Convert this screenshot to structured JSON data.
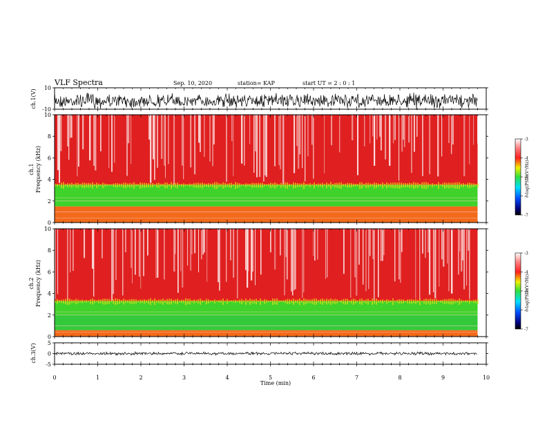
{
  "header": {
    "title": "VLF Spectra",
    "date": "Sep. 10, 2020",
    "station": "station= KAP",
    "start": "start  UT =   2 : 0  : 1"
  },
  "panels": {
    "ch1_wave_label": "ch.1(V)",
    "ch1_spec_label_a": "ch.1",
    "ch1_spec_label_b": "Frequency  (kHz)",
    "ch2_spec_label_a": "ch.2",
    "ch2_spec_label_b": "Frequency  (kHz)",
    "ch3_wave_label": "ch.3(V)",
    "time_label": "Time  (min)",
    "colorbar_label": "log(PSD)(V²/Hz)"
  },
  "colors": {
    "spec_red": "#e02020",
    "spec_green": "#3fd22a",
    "trace": "#000000"
  },
  "chart_data": [
    {
      "type": "line",
      "name": "ch1-waveform",
      "ylabel": "ch.1(V)",
      "ylim": [
        -10,
        10
      ],
      "yticks": [
        -10,
        10
      ],
      "xlim": [
        0,
        10
      ],
      "x_data_end": 9.8,
      "description_values": {
        "mean": -2,
        "range": [
          -9,
          9
        ]
      }
    },
    {
      "type": "heatmap",
      "name": "ch1-spectrogram",
      "xlabel": "",
      "ylabel": "Frequency  (kHz)",
      "ylim": [
        0,
        10
      ],
      "yticks": [
        0,
        2,
        4,
        6,
        8,
        10
      ],
      "xlim": [
        0,
        10
      ],
      "x_data_end": 9.8,
      "bands": [
        {
          "from": 0,
          "to": 0.8,
          "level": -4
        },
        {
          "from": 0.8,
          "to": 1.5,
          "level": -4.2
        },
        {
          "from": 1.5,
          "to": 3.5,
          "level": -4.6
        },
        {
          "from": 3.5,
          "to": 10,
          "level": -3.6
        }
      ],
      "colorbar": {
        "ticks": [
          -3,
          -4,
          -5,
          -6,
          -7
        ],
        "range": [
          -7,
          -3
        ],
        "label": "log(PSD)(V²/Hz)"
      }
    },
    {
      "type": "heatmap",
      "name": "ch2-spectrogram",
      "xlabel": "",
      "ylabel": "Frequency  (kHz)",
      "ylim": [
        0,
        10
      ],
      "yticks": [
        0,
        2,
        4,
        6,
        8,
        10
      ],
      "xlim": [
        0,
        10
      ],
      "x_data_end": 9.8,
      "bands": [
        {
          "from": 0,
          "to": 0.6,
          "level": -4
        },
        {
          "from": 0.6,
          "to": 2.0,
          "level": -5.0
        },
        {
          "from": 2.0,
          "to": 3.3,
          "level": -4.6
        },
        {
          "from": 3.3,
          "to": 10,
          "level": -3.7
        }
      ],
      "colorbar": {
        "ticks": [
          -3,
          -4,
          -5,
          -6,
          -7
        ],
        "range": [
          -7,
          -3
        ],
        "label": "log(PSD)(V²/Hz)"
      }
    },
    {
      "type": "line",
      "name": "ch3-waveform",
      "ylabel": "ch.3(V)",
      "xlabel": "Time  (min)",
      "ylim": [
        -5,
        5
      ],
      "yticks": [
        -5,
        0,
        5
      ],
      "xlim": [
        0,
        10
      ],
      "xticks": [
        0,
        1,
        2,
        3,
        4,
        5,
        6,
        7,
        8,
        9,
        10
      ],
      "x_data_end": 9.8,
      "description_values": {
        "mean": 0,
        "range": [
          -0.5,
          0.5
        ]
      }
    }
  ]
}
